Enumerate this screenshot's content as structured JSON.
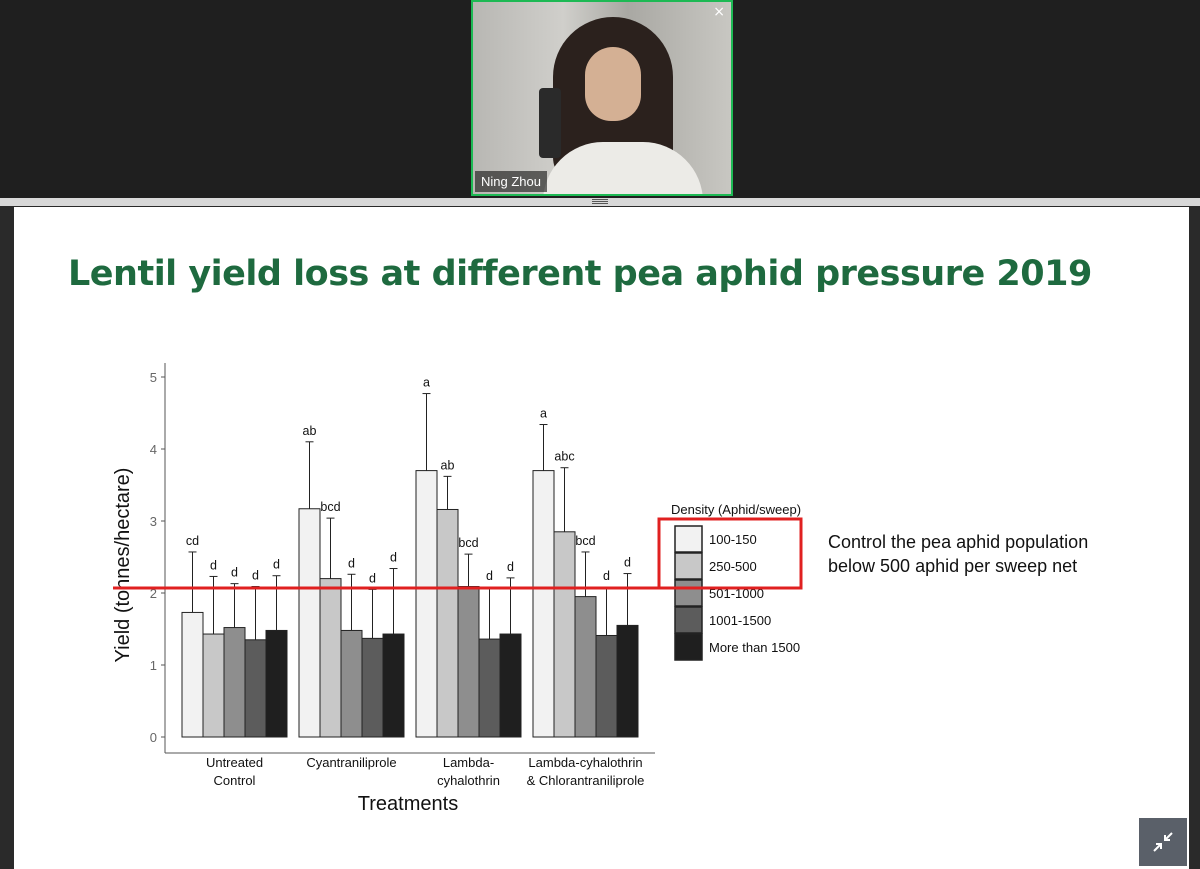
{
  "participant": {
    "name": "Ning Zhou",
    "close_symbol": "×"
  },
  "icons": {
    "close": "close-icon",
    "exit_fullscreen": "collapse-arrows-icon"
  },
  "colors": {
    "title": "#1e6a3f",
    "tile_border": "#1db954",
    "highlight": "#e02020"
  },
  "slide": {
    "title": "Lentil yield loss at different pea aphid pressure 2019",
    "note_lines": [
      "Control the pea aphid population",
      "below 500 aphid per sweep net"
    ]
  },
  "chart_data": {
    "type": "bar",
    "title": "",
    "xlabel": "Treatments",
    "ylabel": "Yield (tonnes/hectare)",
    "ylim": [
      0,
      5
    ],
    "yticks": [
      "0",
      "1",
      "2",
      "3",
      "4",
      "5"
    ],
    "categories": [
      [
        "Untreated",
        "Control"
      ],
      [
        "Cyantraniliprole"
      ],
      [
        "Lambda-",
        "cyhalothrin"
      ],
      [
        "Lambda-cyhalothrin",
        "& Chlorantraniliprole"
      ]
    ],
    "legend_title": "Density (Aphid/sweep)",
    "legend_placement": "right",
    "series": [
      {
        "name": "100-150",
        "color": "#f2f2f2",
        "values": [
          1.73,
          3.17,
          3.7,
          3.7
        ],
        "errors": [
          0.84,
          0.93,
          1.07,
          0.64
        ],
        "letters": [
          "cd",
          "ab",
          "a",
          "a"
        ]
      },
      {
        "name": "250-500",
        "color": "#c8c8c8",
        "values": [
          1.43,
          2.2,
          3.16,
          2.85
        ],
        "errors": [
          0.8,
          0.84,
          0.46,
          0.89
        ],
        "letters": [
          "d",
          "bcd",
          "ab",
          "abc"
        ]
      },
      {
        "name": "501-1000",
        "color": "#8e8e8e",
        "values": [
          1.52,
          1.48,
          2.09,
          1.95
        ],
        "errors": [
          0.61,
          0.78,
          0.45,
          0.62
        ],
        "letters": [
          "d",
          "d",
          "bcd",
          "bcd"
        ]
      },
      {
        "name": "1001-1500",
        "color": "#5c5c5c",
        "values": [
          1.35,
          1.37,
          1.36,
          1.41
        ],
        "errors": [
          0.74,
          0.68,
          0.72,
          0.67
        ],
        "letters": [
          "d",
          "d",
          "d",
          "d"
        ]
      },
      {
        "name": "More than 1500",
        "color": "#1f1f1f",
        "values": [
          1.48,
          1.43,
          1.43,
          1.55
        ],
        "errors": [
          0.76,
          0.91,
          0.78,
          0.72
        ],
        "letters": [
          "d",
          "d",
          "d",
          "d"
        ]
      }
    ],
    "reference_line_y": 2.07,
    "highlighted_legend_entries": [
      "100-150",
      "250-500"
    ]
  }
}
